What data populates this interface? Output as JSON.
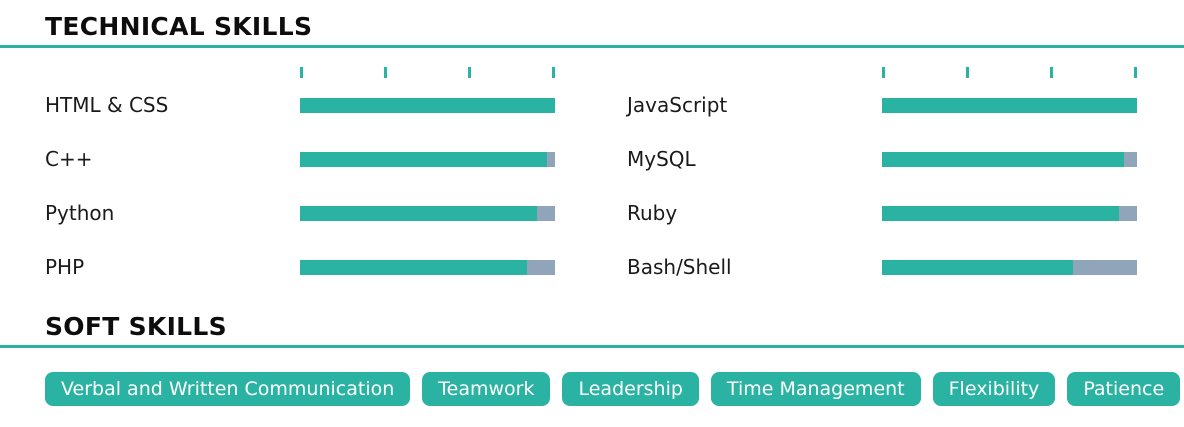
{
  "colors": {
    "accent": "#2ab3a2",
    "track": "#90a5ba",
    "text": "#0d0d0d"
  },
  "technical": {
    "title": "TECHNICAL SKILLS",
    "tick_count": 4,
    "columns": [
      {
        "skills": [
          {
            "name": "HTML & CSS",
            "percent": 100
          },
          {
            "name": "C++",
            "percent": 97
          },
          {
            "name": "Python",
            "percent": 93
          },
          {
            "name": "PHP",
            "percent": 89
          }
        ]
      },
      {
        "skills": [
          {
            "name": "JavaScript",
            "percent": 100
          },
          {
            "name": "MySQL",
            "percent": 95
          },
          {
            "name": "Ruby",
            "percent": 93
          },
          {
            "name": "Bash/Shell",
            "percent": 75
          }
        ]
      }
    ]
  },
  "soft": {
    "title": "SOFT SKILLS",
    "tags": [
      "Verbal and Written Communication",
      "Teamwork",
      "Leadership",
      "Time Management",
      "Flexibility",
      "Patience"
    ]
  }
}
